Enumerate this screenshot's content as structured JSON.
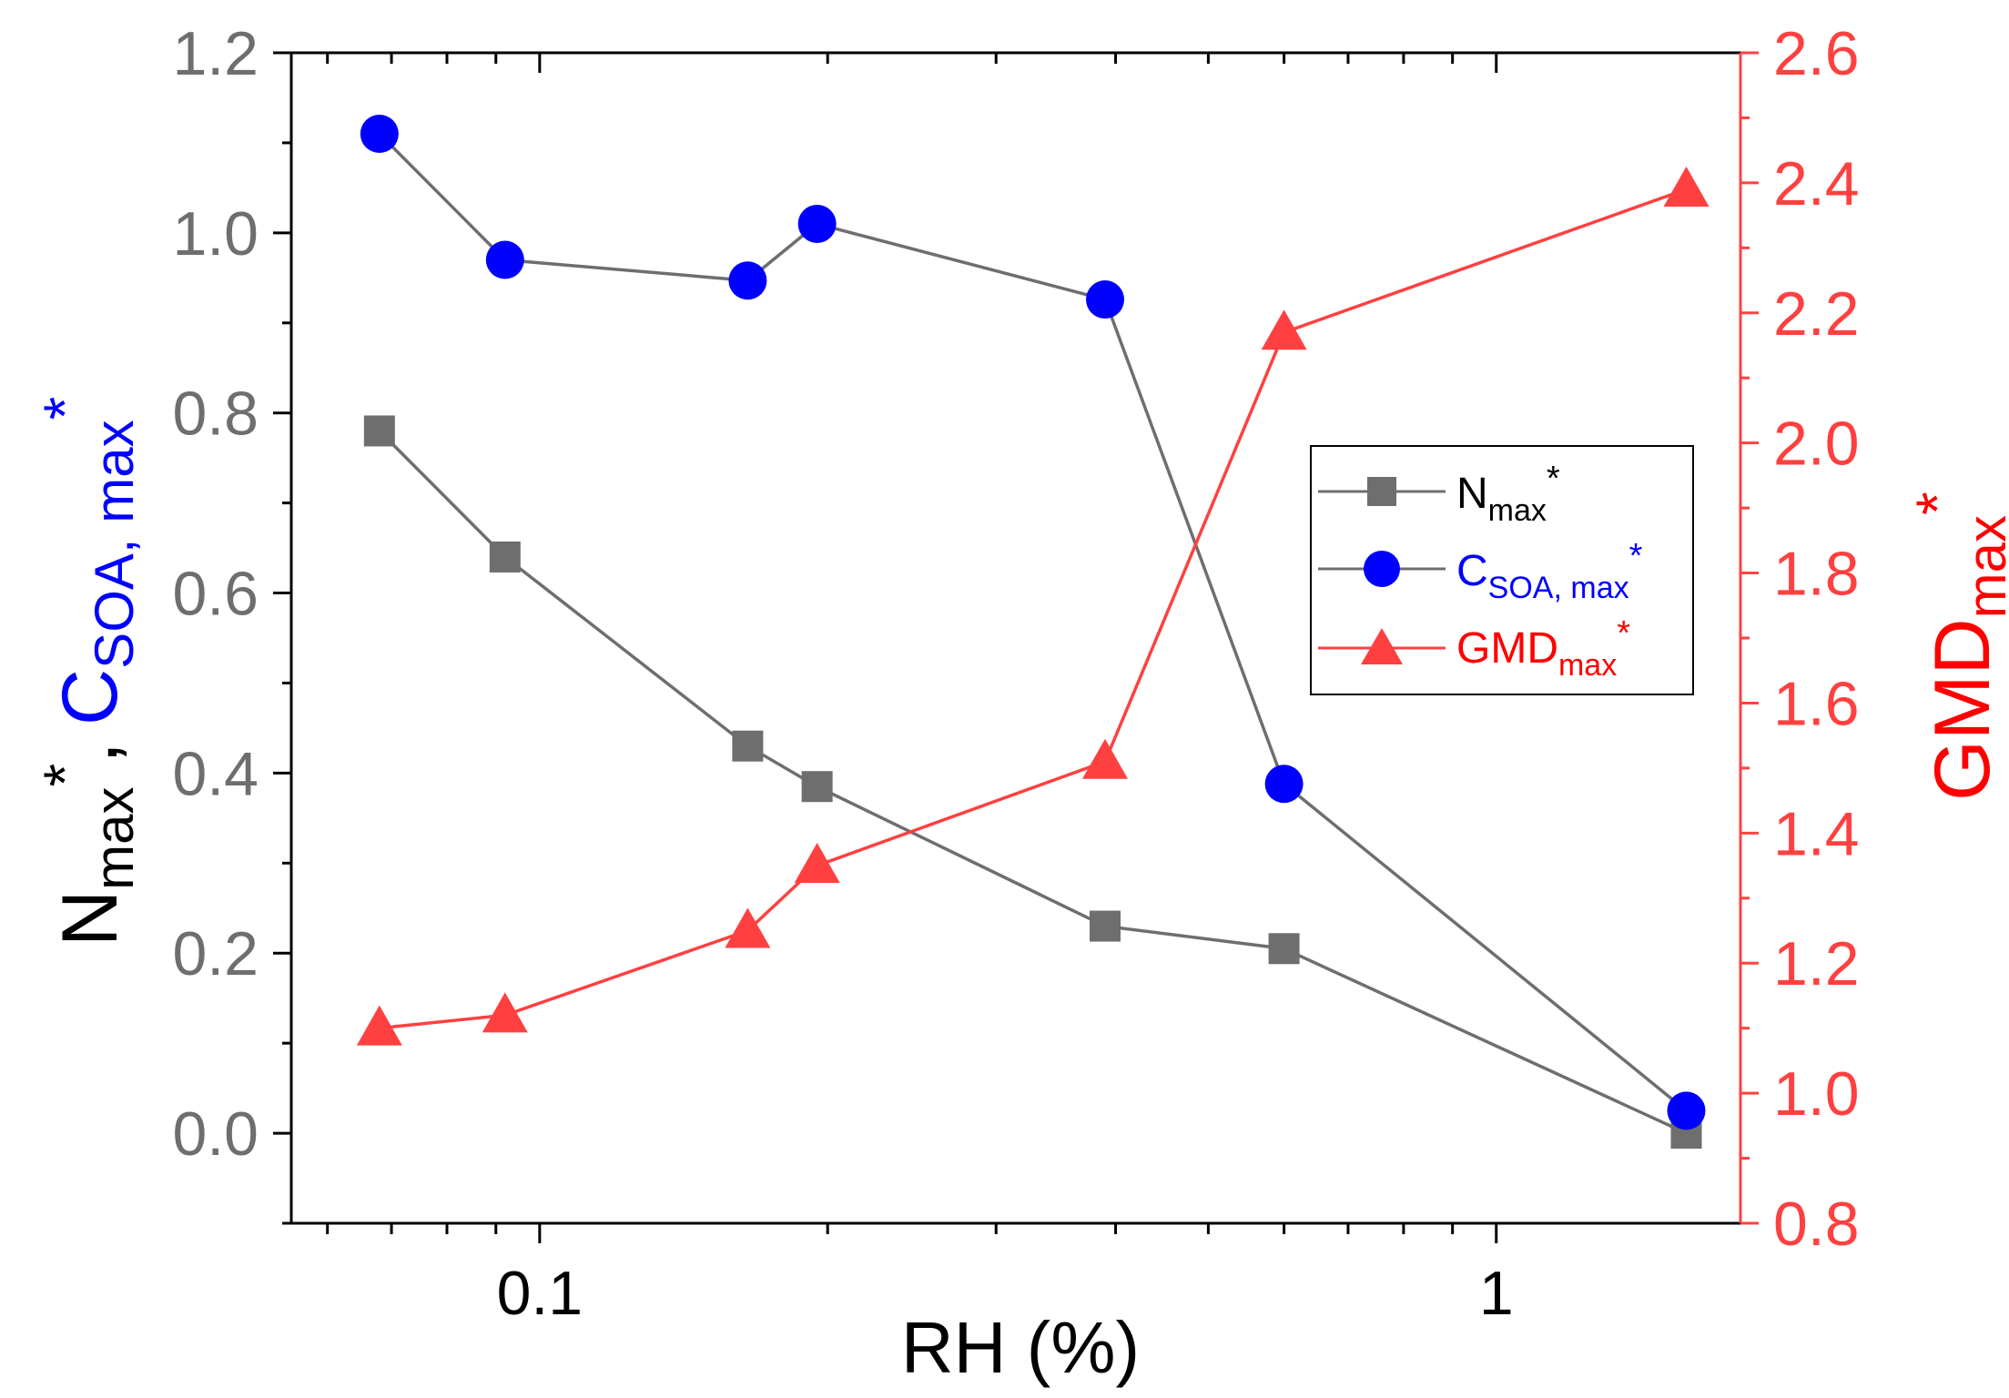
{
  "colors": {
    "gray": "#6e6e6e",
    "blue": "#0000ff",
    "red": "#ff4040",
    "red_text": "#ff0000",
    "black": "#000000"
  },
  "chart_data": {
    "type": "line",
    "x_scale": "log",
    "x": [
      0.068,
      0.092,
      0.165,
      0.195,
      0.39,
      0.6,
      1.58
    ],
    "xlim": [
      0.055,
      1.8
    ],
    "x_ticks": [
      0.1,
      1
    ],
    "x_tick_labels": [
      "0.1",
      "1"
    ],
    "xlabel": "RH (%)",
    "ylim_left": [
      -0.1,
      1.2
    ],
    "y_ticks_left": [
      "0.0",
      "0.2",
      "0.4",
      "0.6",
      "0.8",
      "1.0",
      "1.2"
    ],
    "ylim_right": [
      0.8,
      2.6
    ],
    "y_ticks_right": [
      "0.8",
      "1.0",
      "1.2",
      "1.4",
      "1.6",
      "1.8",
      "2.0",
      "2.2",
      "2.4",
      "2.6"
    ],
    "ylabel_left": {
      "n_main": "N",
      "n_sub": "max",
      "n_sup": "*",
      "sep": ",",
      "c_main": "C",
      "c_sub": "SOA, max",
      "c_sup": "*"
    },
    "ylabel_right": {
      "main": "GMD",
      "sub": "max",
      "sup": "*"
    },
    "series": [
      {
        "name": "Nmax*",
        "axis": "left",
        "marker": "square",
        "values": [
          0.78,
          0.64,
          0.43,
          0.385,
          0.23,
          0.205,
          0.0
        ],
        "legend": {
          "main": "N",
          "sub": "max",
          "sup": "*"
        }
      },
      {
        "name": "CSOA,max*",
        "axis": "left",
        "marker": "circle",
        "values": [
          1.11,
          0.97,
          0.947,
          1.01,
          0.926,
          0.388,
          0.025
        ],
        "legend": {
          "main": "C",
          "sub": "SOA, max",
          "sup": "*"
        }
      },
      {
        "name": "GMDmax*",
        "axis": "right",
        "marker": "triangle",
        "values": [
          1.1,
          1.12,
          1.25,
          1.35,
          1.51,
          2.17,
          2.39
        ],
        "legend": {
          "main": "GMD",
          "sub": "max",
          "sup": "*"
        }
      }
    ],
    "legend_position": "center-right"
  }
}
